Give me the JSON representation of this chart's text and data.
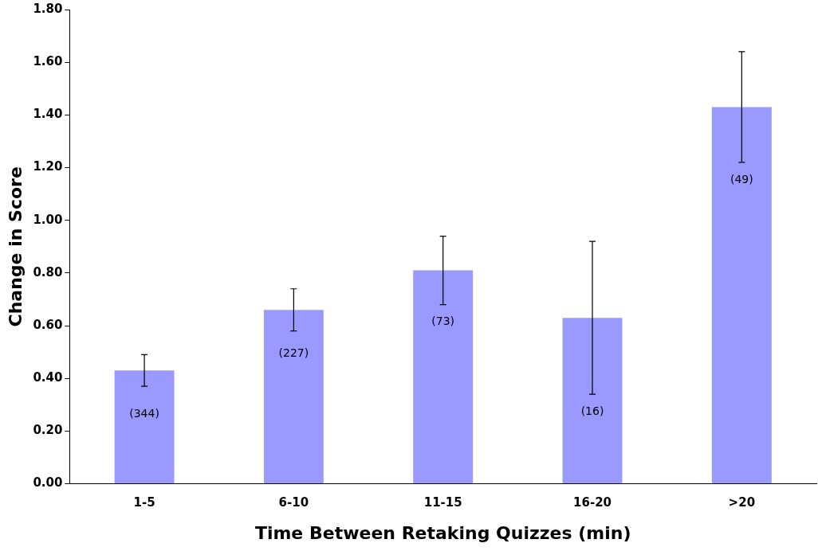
{
  "chart_data": {
    "type": "bar",
    "xlabel": "Time Between Retaking Quizzes (min)",
    "ylabel": "Change in Score",
    "categories": [
      "1-5",
      "6-10",
      "11-15",
      "16-20",
      ">20"
    ],
    "series": [
      {
        "color": "#9999ff",
        "values": [
          0.43,
          0.66,
          0.81,
          0.63,
          1.43
        ],
        "errors": [
          0.06,
          0.08,
          0.13,
          0.29,
          0.21
        ]
      }
    ],
    "ylim": [
      0,
      1.8
    ],
    "yticks": [
      {
        "value": 0,
        "label": "0.00"
      },
      {
        "value": 0.2,
        "label": "0.20"
      },
      {
        "value": 0.4,
        "label": "0.40"
      },
      {
        "value": 0.6,
        "label": "0.60"
      },
      {
        "value": 0.8,
        "label": "0.80"
      },
      {
        "value": 1,
        "label": "1.00"
      },
      {
        "value": 1.2,
        "label": "1.20"
      },
      {
        "value": 1.4,
        "label": "1.40"
      },
      {
        "value": 1.6,
        "label": "1.60"
      },
      {
        "value": 1.8,
        "label": "1.80"
      }
    ],
    "annotations": [
      "(344)",
      "(227)",
      "(73)",
      "(16)",
      "(49)"
    ],
    "grid": false,
    "legend": false
  }
}
